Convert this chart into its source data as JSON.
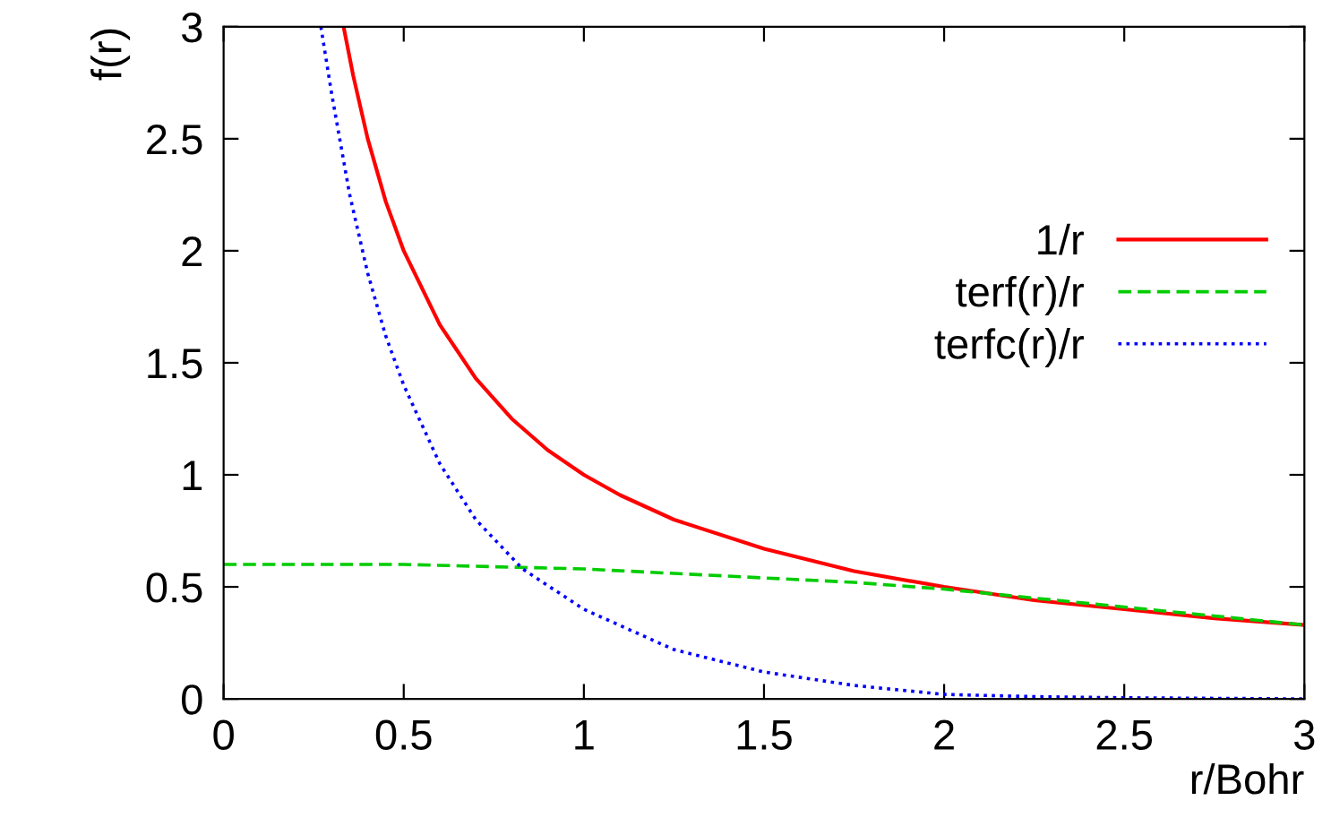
{
  "chart_data": {
    "type": "line",
    "xlabel": "r/Bohr",
    "ylabel": "f(r)",
    "xlim": [
      0,
      3
    ],
    "ylim": [
      0,
      3
    ],
    "xticks": [
      0,
      0.5,
      1,
      1.5,
      2,
      2.5,
      3
    ],
    "yticks": [
      0,
      0.5,
      1,
      1.5,
      2,
      2.5,
      3
    ],
    "grid": false,
    "legend": "right",
    "marker": "none",
    "series": [
      {
        "name": "1/r",
        "color": "#ff0000",
        "line_style": "solid",
        "x": [
          0.333,
          0.36,
          0.4,
          0.45,
          0.5,
          0.6,
          0.7,
          0.8,
          0.9,
          1,
          1.1,
          1.25,
          1.5,
          1.75,
          2,
          2.25,
          2.5,
          2.75,
          3
        ],
        "values": [
          3,
          2.78,
          2.5,
          2.22,
          2,
          1.67,
          1.43,
          1.25,
          1.11,
          1,
          0.91,
          0.8,
          0.67,
          0.57,
          0.5,
          0.44,
          0.4,
          0.36,
          0.33
        ]
      },
      {
        "name": "terf(r)/r",
        "color": "#00cc00",
        "line_style": "dashed",
        "x": [
          0,
          0.25,
          0.5,
          0.75,
          1,
          1.25,
          1.5,
          1.75,
          2,
          2.25,
          2.5,
          2.75,
          3
        ],
        "values": [
          0.6,
          0.6,
          0.6,
          0.59,
          0.58,
          0.56,
          0.54,
          0.52,
          0.49,
          0.45,
          0.41,
          0.37,
          0.33
        ]
      },
      {
        "name": "terfc(r)/r",
        "color": "#0000ff",
        "line_style": "dotted",
        "x": [
          0.27,
          0.3,
          0.35,
          0.4,
          0.45,
          0.5,
          0.6,
          0.7,
          0.83,
          1,
          1.25,
          1.5,
          1.75,
          2,
          2.25,
          2.5,
          3
        ],
        "values": [
          3,
          2.7,
          2.25,
          1.9,
          1.62,
          1.4,
          1.05,
          0.8,
          0.58,
          0.4,
          0.22,
          0.12,
          0.06,
          0.02,
          0.01,
          0.005,
          0
        ]
      }
    ]
  }
}
